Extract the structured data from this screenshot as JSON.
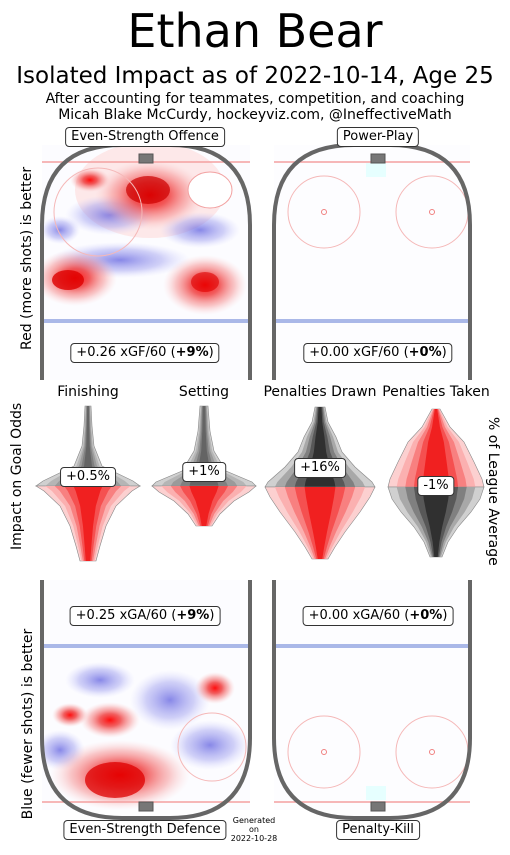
{
  "header": {
    "title": "Ethan Bear",
    "subtitle": "Isolated Impact as of 2022-10-14, Age 25",
    "note1": "After accounting for teammates, competition, and coaching",
    "note2": "Micah Blake McCurdy, hockeyviz.com, @IneffectiveMath"
  },
  "rinks": {
    "ev_offence": {
      "label": "Even-Strength Offence",
      "stat": "+0.26 xGF/60 (",
      "pct": "+9%",
      "close": ")"
    },
    "power_play": {
      "label": "Power-Play",
      "stat": "+0.00 xGF/60 (",
      "pct": "+0%",
      "close": ")"
    },
    "ev_defence": {
      "label": "Even-Strength Defence",
      "stat": "+0.25 xGA/60 (",
      "pct": "+9%",
      "close": ")"
    },
    "penalty_kill": {
      "label": "Penalty-Kill",
      "stat": "+0.00 xGA/60 (",
      "pct": "+0%",
      "close": ")"
    }
  },
  "axis_labels": {
    "top_left": "Red (more shots) is better",
    "middle_left": "Impact on Goal Odds",
    "middle_right": "% of League Average",
    "bottom_left": "Blue (fewer shots) is better"
  },
  "footer": {
    "generated_line1": "Generated",
    "generated_line2": "on",
    "generated_line3": "2022-10-28"
  },
  "chart_data": {
    "type": "violin",
    "categories": [
      "Finishing",
      "Setting",
      "Penalties Drawn",
      "Penalties Taken"
    ],
    "values_label": [
      "+0.5%",
      "+1%",
      "+16%",
      "-1%"
    ],
    "values": [
      0.5,
      1,
      16,
      -1
    ],
    "unit": "%"
  }
}
